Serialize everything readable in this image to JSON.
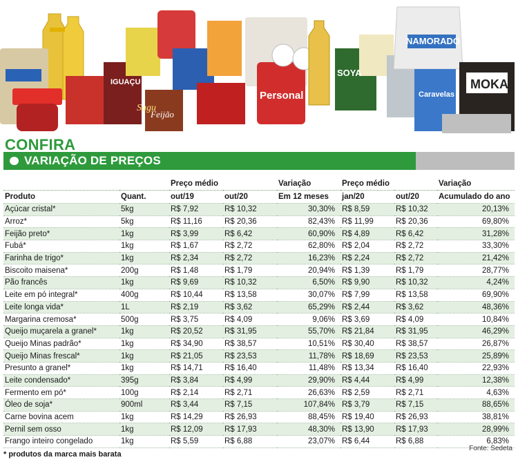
{
  "title": "CONFIRA",
  "subtitle": "VARIAÇÃO DE PREÇOS",
  "header_groups": [
    "Preço médio",
    "Variação",
    "Preço médio",
    "Variação"
  ],
  "columns": [
    "Produto",
    "Quant.",
    "out/19",
    "out/20",
    "Em 12 meses",
    "jan/20",
    "out/20",
    "Acumulado do ano"
  ],
  "rows": [
    [
      "Açúcar cristal*",
      "5kg",
      "R$ 7,92",
      "R$ 10,32",
      "30,30%",
      "R$ 8,59",
      "R$ 10,32",
      "20,13%"
    ],
    [
      "Arroz*",
      "5kg",
      "R$ 11,16",
      "R$ 20,36",
      "82,43%",
      "R$ 11,99",
      "R$ 20,36",
      "69,80%"
    ],
    [
      "Feijão preto*",
      "1kg",
      "R$ 3,99",
      "R$ 6,42",
      "60,90%",
      "R$ 4,89",
      "R$ 6,42",
      "31,28%"
    ],
    [
      "Fubá*",
      "1kg",
      "R$ 1,67",
      "R$ 2,72",
      "62,80%",
      "R$ 2,04",
      "R$ 2,72",
      "33,30%"
    ],
    [
      "Farinha de trigo*",
      "1kg",
      "R$ 2,34",
      "R$ 2,72",
      "16,23%",
      "R$ 2,24",
      "R$ 2,72",
      "21,42%"
    ],
    [
      "Biscoito maisena*",
      "200g",
      "R$ 1,48",
      "R$ 1,79",
      "20,94%",
      "R$ 1,39",
      "R$ 1,79",
      "28,77%"
    ],
    [
      "Pão francês",
      "1kg",
      "R$ 9,69",
      "R$ 10,32",
      "6,50%",
      "R$ 9,90",
      "R$ 10,32",
      "4,24%"
    ],
    [
      "Leite em pó integral*",
      "400g",
      "R$ 10,44",
      "R$ 13,58",
      "30,07%",
      "R$ 7,99",
      "R$ 13,58",
      "69,90%"
    ],
    [
      "Leite longa vida*",
      "1L",
      "R$ 2,19",
      "R$ 3,62",
      "65,29%",
      "R$ 2,44",
      "R$ 3,62",
      "48,36%"
    ],
    [
      "Margarina cremosa*",
      "500g",
      "R$ 3,75",
      "R$ 4,09",
      "9,06%",
      "R$ 3,69",
      "R$ 4,09",
      "10,84%"
    ],
    [
      "Queijo muçarela a granel*",
      "1kg",
      "R$ 20,52",
      "R$ 31,95",
      "55,70%",
      "R$ 21,84",
      "R$ 31,95",
      "46,29%"
    ],
    [
      "Queijo Minas padrão*",
      "1kg",
      "R$ 34,90",
      "R$ 38,57",
      "10,51%",
      "R$ 30,40",
      "R$ 38,57",
      "26,87%"
    ],
    [
      "Queijo Minas frescal*",
      "1kg",
      "R$ 21,05",
      "R$ 23,53",
      "11,78%",
      "R$ 18,69",
      "R$ 23,53",
      "25,89%"
    ],
    [
      "Presunto a granel*",
      "1kg",
      "R$ 14,71",
      "R$ 16,40",
      "11,48%",
      "R$ 13,34",
      "R$ 16,40",
      "22,93%"
    ],
    [
      "Leite condensado*",
      "395g",
      "R$ 3,84",
      "R$ 4,99",
      "29,90%",
      "R$ 4,44",
      "R$ 4,99",
      "12,38%"
    ],
    [
      "Fermento em pó*",
      "100g",
      "R$ 2,14",
      "R$ 2,71",
      "26,63%",
      "R$ 2,59",
      "R$ 2,71",
      "4,63%"
    ],
    [
      "Óleo de soja*",
      "900ml",
      "R$ 3,44",
      "R$ 7,15",
      "107,84%",
      "R$ 3,79",
      "R$ 7,15",
      "88,65%"
    ],
    [
      "Carne bovina acem",
      "1kg",
      "R$ 14,29",
      "R$ 26,93",
      "88,45%",
      "R$ 19,40",
      "R$ 26,93",
      "38,81%"
    ],
    [
      "Pernil sem osso",
      "1kg",
      "R$ 12,09",
      "R$ 17,93",
      "48,30%",
      "R$ 13,90",
      "R$ 17,93",
      "28,99%"
    ],
    [
      "Frango inteiro congelado",
      "1kg",
      "R$ 5,59",
      "R$ 6,88",
      "23,07%",
      "R$ 6,44",
      "R$ 6,88",
      "6,83%"
    ]
  ],
  "source": "Fonte: Sedeta",
  "footnote": "* produtos da marca mais barata",
  "hero": {
    "labels": [
      "IGUAÇU",
      "Feijão",
      "Personal",
      "NAMORADO",
      "MOKA",
      "Caravelas",
      "SOYA",
      "Sagu"
    ]
  },
  "colors": {
    "green": "#2e9a3c",
    "gray": "#bdbdbd",
    "stripe": "#e3f0e1"
  }
}
